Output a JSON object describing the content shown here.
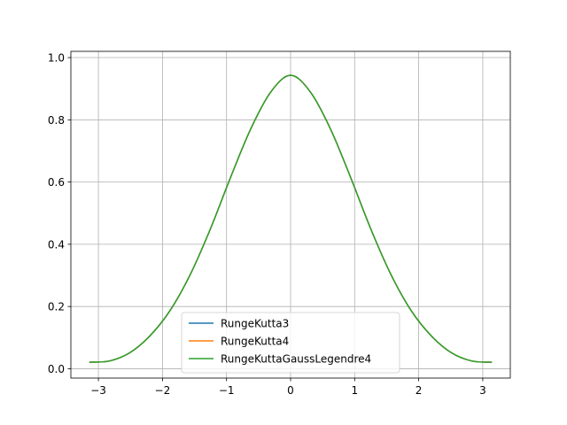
{
  "chart_data": {
    "type": "line",
    "title": "",
    "xlabel": "",
    "ylabel": "",
    "xlim": [
      -3.43,
      3.43
    ],
    "ylim": [
      -0.03,
      1.02
    ],
    "xticks": [
      -3,
      -2,
      -1,
      0,
      1,
      2,
      3
    ],
    "xtick_labels": [
      "−3",
      "−2",
      "−1",
      "0",
      "1",
      "2",
      "3"
    ],
    "yticks": [
      0.0,
      0.2,
      0.4,
      0.6,
      0.8,
      1.0
    ],
    "ytick_labels": [
      "0.0",
      "0.2",
      "0.4",
      "0.6",
      "0.8",
      "1.0"
    ],
    "grid": true,
    "legend_position": "lower-center",
    "x": [
      -3.1416,
      -2.8274,
      -2.5133,
      -2.1991,
      -1.885,
      -1.5708,
      -1.2566,
      -0.9425,
      -0.6283,
      -0.3142,
      0.0,
      0.3142,
      0.6283,
      0.9425,
      1.2566,
      1.5708,
      1.885,
      2.1991,
      2.5133,
      2.8274,
      3.1416
    ],
    "series": [
      {
        "name": "RungeKutta3",
        "color": "#1f77b4",
        "values": [
          0.021,
          0.025,
          0.051,
          0.105,
          0.186,
          0.301,
          0.447,
          0.612,
          0.768,
          0.888,
          0.943,
          0.888,
          0.768,
          0.612,
          0.447,
          0.301,
          0.186,
          0.105,
          0.051,
          0.025,
          0.021
        ]
      },
      {
        "name": "RungeKutta4",
        "color": "#ff7f0e",
        "values": [
          0.021,
          0.025,
          0.051,
          0.105,
          0.186,
          0.301,
          0.447,
          0.612,
          0.768,
          0.888,
          0.943,
          0.888,
          0.768,
          0.612,
          0.447,
          0.301,
          0.186,
          0.105,
          0.051,
          0.025,
          0.021
        ]
      },
      {
        "name": "RungeKuttaGaussLegendre4",
        "color": "#2ca02c",
        "values": [
          0.021,
          0.025,
          0.051,
          0.105,
          0.186,
          0.301,
          0.447,
          0.612,
          0.768,
          0.888,
          0.943,
          0.888,
          0.768,
          0.612,
          0.447,
          0.301,
          0.186,
          0.105,
          0.051,
          0.025,
          0.021
        ]
      }
    ]
  }
}
